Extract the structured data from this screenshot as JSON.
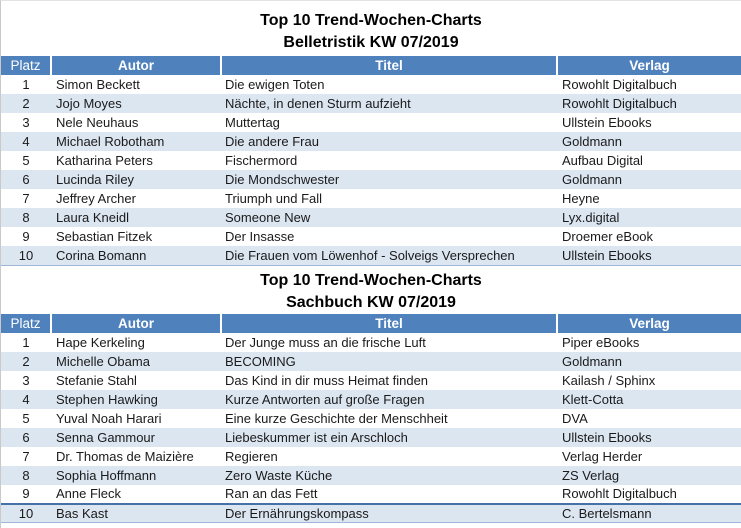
{
  "colors": {
    "header_bg": "#4F81BD",
    "header_text": "#FFFFFF",
    "band_row_bg": "#DCE6F1",
    "table_bottom_border": "#9EB6D8",
    "accent_row_border": "#4472A8",
    "body_text": "#1A1A1A"
  },
  "tables": [
    {
      "title_line1": "Top 10 Trend-Wochen-Charts",
      "title_line2": "Belletristik KW 07/2019",
      "columns": [
        "Platz",
        "Autor",
        "Titel",
        "Verlag"
      ],
      "rows": [
        [
          "1",
          "Simon Beckett",
          "Die ewigen Toten",
          "Rowohlt Digitalbuch"
        ],
        [
          "2",
          "Jojo Moyes",
          "Nächte, in denen Sturm aufzieht",
          "Rowohlt Digitalbuch"
        ],
        [
          "3",
          "Nele Neuhaus",
          "Muttertag",
          "Ullstein Ebooks"
        ],
        [
          "4",
          "Michael Robotham",
          "Die andere Frau",
          "Goldmann"
        ],
        [
          "5",
          "Katharina Peters",
          "Fischermord",
          "Aufbau Digital"
        ],
        [
          "6",
          "Lucinda Riley",
          "Die Mondschwester",
          "Goldmann"
        ],
        [
          "7",
          "Jeffrey Archer",
          "Triumph und Fall",
          "Heyne"
        ],
        [
          "8",
          "Laura Kneidl",
          "Someone New",
          "Lyx.digital"
        ],
        [
          "9",
          "Sebastian Fitzek",
          "Der Insasse",
          "Droemer eBook"
        ],
        [
          "10",
          "Corina Bomann",
          "Die Frauen vom Löwenhof - Solveigs Versprechen",
          "Ullstein Ebooks"
        ]
      ]
    },
    {
      "title_line1": "Top 10 Trend-Wochen-Charts",
      "title_line2": "Sachbuch KW 07/2019",
      "columns": [
        "Platz",
        "Autor",
        "Titel",
        "Verlag"
      ],
      "rows": [
        [
          "1",
          "Hape Kerkeling",
          "Der Junge muss an die frische Luft",
          "Piper eBooks"
        ],
        [
          "2",
          "Michelle Obama",
          "BECOMING",
          "Goldmann"
        ],
        [
          "3",
          "Stefanie Stahl",
          "Das Kind in dir muss Heimat finden",
          "Kailash / Sphinx"
        ],
        [
          "4",
          "Stephen Hawking",
          "Kurze Antworten auf große Fragen",
          "Klett-Cotta"
        ],
        [
          "5",
          "Yuval Noah Harari",
          "Eine kurze Geschichte der Menschheit",
          "DVA"
        ],
        [
          "6",
          "Senna Gammour",
          "Liebeskummer ist ein Arschloch",
          "Ullstein Ebooks"
        ],
        [
          "7",
          "Dr. Thomas de Maizière",
          "Regieren",
          "Verlag Herder"
        ],
        [
          "8",
          "Sophia Hoffmann",
          "Zero Waste Küche",
          "ZS Verlag"
        ],
        [
          "9",
          "Anne Fleck",
          "Ran an das Fett",
          "Rowohlt Digitalbuch"
        ],
        [
          "10",
          "Bas Kast",
          "Der Ernährungskompass",
          "C. Bertelsmann"
        ]
      ]
    }
  ]
}
